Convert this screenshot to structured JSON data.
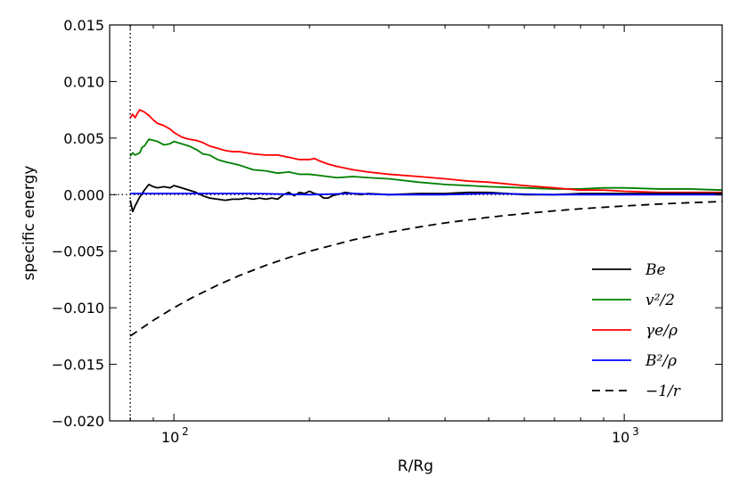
{
  "chart_data": {
    "type": "line",
    "xlabel": "R/Rg",
    "ylabel": "specific energy",
    "xscale": "log",
    "xlim": [
      72,
      1650
    ],
    "ylim": [
      -0.02,
      0.015
    ],
    "x_ticks": [
      {
        "value": 100,
        "label": "10",
        "exp": "2"
      },
      {
        "value": 1000,
        "label": "10",
        "exp": "3"
      }
    ],
    "y_ticks": [
      {
        "value": 0.015,
        "label": "0.015"
      },
      {
        "value": 0.01,
        "label": "0.010"
      },
      {
        "value": 0.005,
        "label": "0.005"
      },
      {
        "value": 0.0,
        "label": "0.000"
      },
      {
        "value": -0.005,
        "label": "−0.005"
      },
      {
        "value": -0.01,
        "label": "−0.010"
      },
      {
        "value": -0.015,
        "label": "−0.015"
      },
      {
        "value": -0.02,
        "label": "−0.020"
      }
    ],
    "vline_x": 80,
    "hline_y": 0,
    "legend_position": "lower-right",
    "series": [
      {
        "name": "Be",
        "color": "#000000",
        "dash": "solid",
        "x": [
          80,
          81,
          82,
          84,
          86,
          88,
          90,
          92,
          95,
          98,
          100,
          104,
          108,
          112,
          116,
          120,
          125,
          130,
          135,
          140,
          145,
          150,
          155,
          160,
          165,
          170,
          175,
          180,
          185,
          190,
          195,
          200,
          205,
          210,
          215,
          220,
          225,
          230,
          240,
          250,
          260,
          270,
          300,
          350,
          400,
          450,
          500,
          550,
          600,
          700,
          800,
          1000,
          1200,
          1400,
          1650
        ],
        "y": [
          -0.0005,
          -0.0015,
          -0.001,
          -0.0002,
          0.0004,
          0.0009,
          0.0007,
          0.0006,
          0.0007,
          0.0006,
          0.0008,
          0.0006,
          0.0004,
          0.0002,
          -0.0001,
          -0.0003,
          -0.0004,
          -0.0005,
          -0.0004,
          -0.0004,
          -0.0003,
          -0.0004,
          -0.0003,
          -0.0004,
          -0.0003,
          -0.0004,
          0.0,
          0.0002,
          -0.0001,
          0.0002,
          0.0001,
          0.0003,
          0.0001,
          0.0,
          -0.0003,
          -0.0003,
          -0.0001,
          0.0,
          0.0002,
          0.0001,
          0.0,
          0.0001,
          0.0,
          0.0001,
          0.0001,
          0.0002,
          0.0002,
          0.0001,
          0.0,
          0.0,
          0.0001,
          0.0001,
          0.0001,
          0.0001,
          0.0001
        ]
      },
      {
        "name": "v²/2",
        "color": "#008000",
        "dash": "solid",
        "x": [
          80,
          81,
          82,
          84,
          85,
          86,
          88,
          90,
          92,
          95,
          98,
          100,
          104,
          108,
          112,
          116,
          120,
          125,
          130,
          140,
          150,
          160,
          170,
          180,
          190,
          200,
          210,
          220,
          230,
          250,
          270,
          300,
          350,
          400,
          450,
          500,
          600,
          700,
          800,
          900,
          1000,
          1200,
          1400,
          1650
        ],
        "y": [
          0.0034,
          0.0037,
          0.0035,
          0.0037,
          0.0042,
          0.0043,
          0.0049,
          0.0048,
          0.0047,
          0.0044,
          0.0045,
          0.0047,
          0.0045,
          0.0043,
          0.004,
          0.0036,
          0.0035,
          0.0031,
          0.0029,
          0.0026,
          0.0022,
          0.0021,
          0.0019,
          0.002,
          0.0018,
          0.0018,
          0.0017,
          0.0016,
          0.0015,
          0.0016,
          0.0015,
          0.0014,
          0.0011,
          0.0009,
          0.0008,
          0.0007,
          0.0006,
          0.0005,
          0.0005,
          0.0006,
          0.0006,
          0.0005,
          0.0005,
          0.0004
        ]
      },
      {
        "name": "γe/ρ",
        "color": "#ff0000",
        "dash": "solid",
        "x": [
          80,
          81,
          82,
          83,
          84,
          85,
          86,
          88,
          90,
          92,
          95,
          98,
          100,
          104,
          108,
          112,
          116,
          120,
          125,
          130,
          135,
          140,
          150,
          160,
          170,
          180,
          190,
          200,
          205,
          210,
          220,
          230,
          250,
          270,
          300,
          350,
          400,
          450,
          500,
          600,
          700,
          800,
          900,
          1000,
          1200,
          1400,
          1650
        ],
        "y": [
          0.0068,
          0.0071,
          0.0068,
          0.0072,
          0.0075,
          0.0074,
          0.0073,
          0.007,
          0.0066,
          0.0063,
          0.0061,
          0.0058,
          0.0055,
          0.0051,
          0.0049,
          0.0048,
          0.0046,
          0.0043,
          0.0041,
          0.0039,
          0.0038,
          0.0038,
          0.0036,
          0.0035,
          0.0035,
          0.0033,
          0.0031,
          0.0031,
          0.0032,
          0.003,
          0.0027,
          0.0025,
          0.0022,
          0.002,
          0.0018,
          0.0016,
          0.0014,
          0.0012,
          0.0011,
          0.0008,
          0.0006,
          0.0004,
          0.0004,
          0.0003,
          0.0002,
          0.0002,
          0.0002
        ]
      },
      {
        "name": "B²/ρ",
        "color": "#0000ff",
        "dash": "solid",
        "x": [
          80,
          85,
          90,
          100,
          120,
          150,
          200,
          250,
          300,
          400,
          500,
          700,
          1000,
          1400,
          1650
        ],
        "y": [
          0.0001,
          0.0001,
          0.0001,
          0.0001,
          0.0001,
          0.0001,
          0.0,
          0.0001,
          0.0,
          0.0,
          0.0001,
          0.0,
          0.0,
          0.0,
          0.0
        ]
      },
      {
        "name": "−1/r",
        "color": "#000000",
        "dash": "dashed",
        "x": [
          80,
          90,
          100,
          110,
          125,
          140,
          160,
          180,
          200,
          250,
          300,
          350,
          400,
          500,
          600,
          700,
          800,
          1000,
          1200,
          1400,
          1650
        ],
        "y": [
          -0.0125,
          -0.01111,
          -0.01,
          -0.00909,
          -0.008,
          -0.00714,
          -0.00625,
          -0.00556,
          -0.005,
          -0.004,
          -0.00333,
          -0.00286,
          -0.0025,
          -0.002,
          -0.00167,
          -0.00143,
          -0.00125,
          -0.001,
          -0.00083,
          -0.00071,
          -0.00061
        ]
      }
    ]
  }
}
